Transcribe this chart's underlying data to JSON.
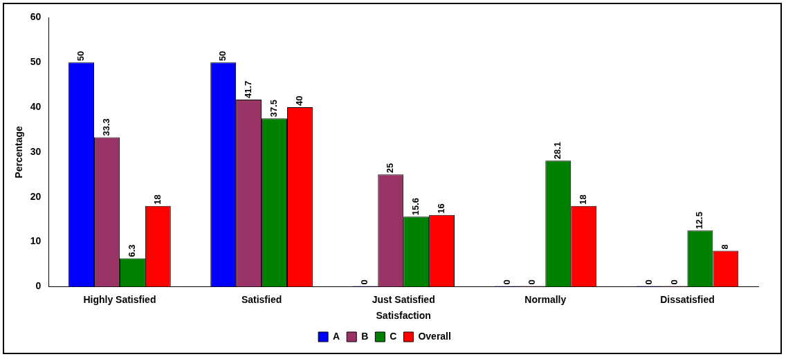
{
  "chart_data": {
    "type": "bar",
    "xlabel": "Satisfaction",
    "ylabel": "Percentage",
    "categories": [
      "Highly Satisfied",
      "Satisfied",
      "Just Satisfied",
      "Normally",
      "Dissatisfied"
    ],
    "series": [
      {
        "name": "A",
        "color": "#0000ff",
        "values": [
          50,
          50,
          0,
          0,
          0
        ]
      },
      {
        "name": "B",
        "color": "#993366",
        "values": [
          33.3,
          41.7,
          25,
          0,
          0
        ]
      },
      {
        "name": "C",
        "color": "#008000",
        "values": [
          6.3,
          37.5,
          15.6,
          28.1,
          12.5
        ]
      },
      {
        "name": "Overall",
        "color": "#ff0000",
        "values": [
          18,
          40,
          16,
          18,
          8
        ]
      }
    ],
    "ylim": [
      0,
      60
    ],
    "yticks": [
      0,
      10,
      20,
      30,
      40,
      50,
      60
    ],
    "grid": false,
    "legend": "bottom",
    "data_labels": true
  }
}
